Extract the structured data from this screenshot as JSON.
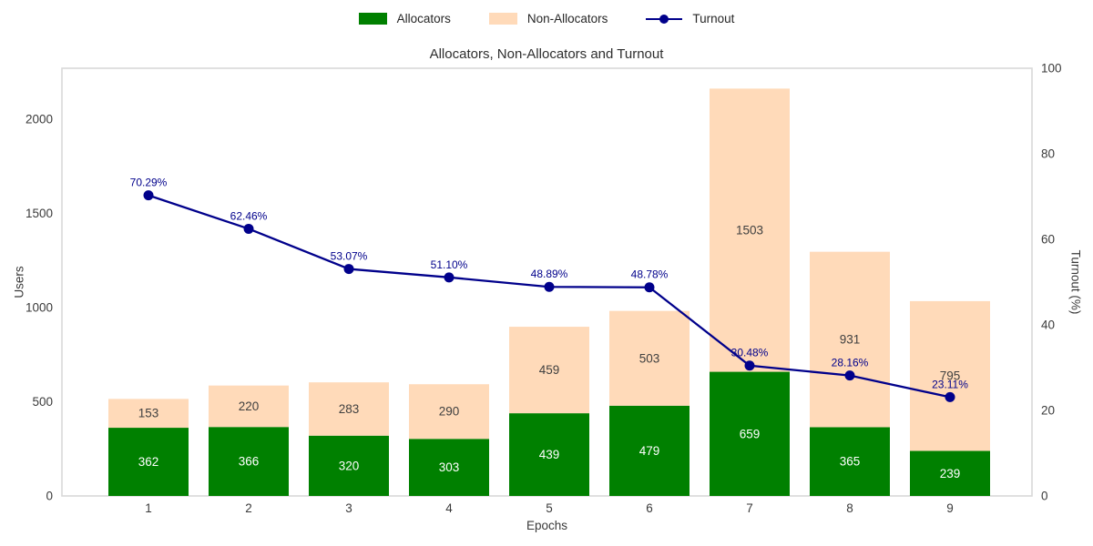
{
  "legend": {
    "items": [
      {
        "label": "Allocators",
        "marker": "swatch",
        "color": "#008000"
      },
      {
        "label": "Non-Allocators",
        "marker": "swatch",
        "color": "#ffdab9"
      },
      {
        "label": "Turnout",
        "marker": "line-dot",
        "color": "#00008b"
      }
    ]
  },
  "chart_data": {
    "type": "bar",
    "subtype": "stacked-bars-with-line",
    "title": "Allocators, Non-Allocators and Turnout",
    "xlabel": "Epochs",
    "ylabel_left": "Users",
    "ylabel_right": "Turnout (%)",
    "categories": [
      "1",
      "2",
      "3",
      "4",
      "5",
      "6",
      "7",
      "8",
      "9"
    ],
    "yticks_left": [
      0,
      500,
      1000,
      1500,
      2000
    ],
    "yticks_right": [
      0,
      20,
      40,
      60,
      80,
      100
    ],
    "ylim_left": [
      0,
      2270
    ],
    "ylim_right": [
      0,
      100
    ],
    "grid": false,
    "legend_position": "top-center",
    "series": [
      {
        "name": "Allocators",
        "type": "bar",
        "color": "#008000",
        "label_color": "#ffffff",
        "values": [
          362,
          366,
          320,
          303,
          439,
          479,
          659,
          365,
          239
        ]
      },
      {
        "name": "Non-Allocators",
        "type": "bar",
        "stacked_on": "Allocators",
        "color": "#ffdab9",
        "label_color": "#404040",
        "values": [
          153,
          220,
          283,
          290,
          459,
          503,
          1503,
          931,
          795
        ]
      },
      {
        "name": "Turnout",
        "type": "line",
        "axis": "right",
        "color": "#00008b",
        "values": [
          70.29,
          62.46,
          53.07,
          51.1,
          48.89,
          48.78,
          30.48,
          28.16,
          23.11
        ],
        "point_labels": [
          "70.29%",
          "62.46%",
          "53.07%",
          "51.10%",
          "48.89%",
          "48.78%",
          "30.48%",
          "28.16%",
          "23.11%"
        ]
      }
    ]
  }
}
